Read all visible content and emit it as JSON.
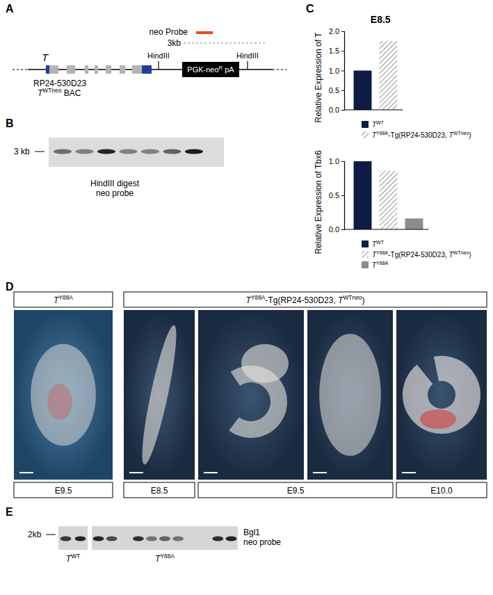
{
  "panel_labels": [
    "A",
    "B",
    "C",
    "D",
    "E"
  ],
  "panel_a": {
    "probe": "neo Probe",
    "probe_size": "3kb",
    "gene": "T",
    "sites": [
      "HindIII",
      "HindIII"
    ],
    "cassette": [
      "PGK-neo",
      "R",
      " pA"
    ],
    "bac": [
      "RP24-530D23",
      "TWTneo BAC"
    ]
  },
  "panel_b": {
    "size_marker": "3 kb",
    "band_intensity": [
      0.55,
      0.45,
      0.9,
      0.45,
      0.45,
      0.6,
      0.95
    ],
    "caption": [
      "HindIII digest",
      "neo probe"
    ]
  },
  "chart_data": [
    {
      "type": "bar",
      "title": "E8.5",
      "y_label": "Relative Expression of T",
      "categories": [
        null
      ],
      "series": [
        {
          "name": "TWT",
          "color": "#0d1b45",
          "values": [
            1.0
          ]
        },
        {
          "name": "TY88A-Tg(RP24-530D23, TWTneo)",
          "color": "#9a9a9a",
          "marker": "hatch",
          "values": [
            1.75
          ]
        }
      ],
      "ylim": [
        0,
        2
      ],
      "yticks": [
        {
          "value": 0,
          "label": "0.0"
        },
        0.5,
        {
          "value": 1,
          "label": "1.0"
        },
        1.5,
        {
          "value": 2,
          "label": "2.0"
        }
      ],
      "tick_labels": "y"
    },
    {
      "type": "bar",
      "y_label": "Relative Expression of Tbx6",
      "categories": [
        null
      ],
      "series": [
        {
          "name": "TWT",
          "color": "#0d1b45",
          "values": [
            1.0
          ]
        },
        {
          "name": "TY88A-Tg(RP24-530D23, TWTneo)",
          "color": "#9a9a9a",
          "marker": "hatch",
          "values": [
            0.86
          ]
        },
        {
          "name": "TY88A",
          "color": "#8c8c8c",
          "values": [
            0.16
          ]
        }
      ],
      "ylim": [
        0,
        1
      ],
      "yticks": [
        {
          "value": 0,
          "label": "0.0"
        },
        0.5,
        {
          "value": 1,
          "label": "1.0"
        }
      ],
      "tick_labels": "y"
    }
  ],
  "panel_d": {
    "headers": [
      "TY88A",
      "TY88A-Tg(RP24-530D23, TWTneo)"
    ],
    "stages": [
      "E9.5",
      "E8.5",
      "E9.5",
      "E10.0"
    ]
  },
  "panel_e": {
    "size_marker": "2kb",
    "lane_groups": [
      {
        "label": "TWT",
        "band_intensity": [
          0.8,
          0.9
        ]
      },
      {
        "label": "TY88A",
        "band_intensity": [
          0.9,
          0.7,
          0,
          0.85,
          0.5,
          0.6,
          0.5,
          0,
          0,
          0.85,
          0.9
        ]
      }
    ],
    "caption": [
      "Bgl1",
      "neo probe"
    ]
  }
}
